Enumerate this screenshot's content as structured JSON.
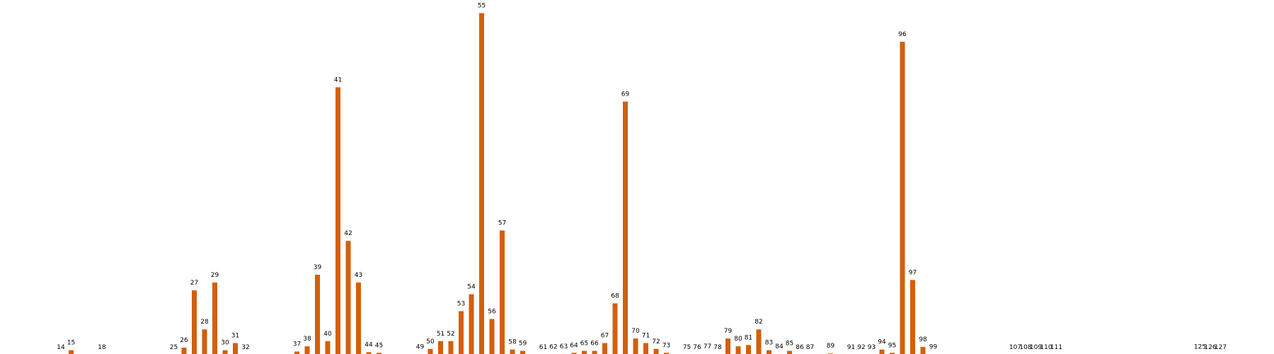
{
  "chart_data": {
    "type": "bar",
    "title": "",
    "xlabel": "",
    "ylabel": "",
    "ylim": [
      0,
      2600
    ],
    "grid": false,
    "legend": "none",
    "color": "#d35f0b",
    "categories": [
      "14",
      "15",
      "18",
      "25",
      "26",
      "27",
      "28",
      "29",
      "30",
      "31",
      "32",
      "37",
      "38",
      "39",
      "40",
      "41",
      "42",
      "43",
      "44",
      "45",
      "49",
      "50",
      "51",
      "52",
      "53",
      "54",
      "55",
      "56",
      "57",
      "58",
      "59",
      "61",
      "62",
      "63",
      "64",
      "65",
      "66",
      "67",
      "68",
      "69",
      "70",
      "71",
      "72",
      "73",
      "75",
      "76",
      "77",
      "78",
      "79",
      "80",
      "81",
      "82",
      "83",
      "84",
      "85",
      "86",
      "87",
      "89",
      "91",
      "92",
      "93",
      "94",
      "95",
      "96",
      "97",
      "98",
      "99",
      "107",
      "108",
      "109",
      "110",
      "111",
      "125",
      "126",
      "127"
    ],
    "positions": [
      14,
      15,
      18,
      25,
      26,
      27,
      28,
      29,
      30,
      31,
      32,
      37,
      38,
      39,
      40,
      41,
      42,
      43,
      44,
      45,
      49,
      50,
      51,
      52,
      53,
      54,
      55,
      56,
      57,
      58,
      59,
      61,
      62,
      63,
      64,
      65,
      66,
      67,
      68,
      69,
      70,
      71,
      72,
      73,
      75,
      76,
      77,
      78,
      79,
      80,
      81,
      82,
      83,
      84,
      85,
      86,
      87,
      89,
      91,
      92,
      93,
      94,
      95,
      96,
      97,
      98,
      99,
      107,
      108,
      109,
      110,
      111,
      125,
      126,
      127
    ],
    "values": [
      5,
      40,
      2,
      2,
      60,
      500,
      200,
      560,
      40,
      95,
      5,
      30,
      70,
      620,
      110,
      2060,
      880,
      560,
      25,
      20,
      8,
      50,
      110,
      110,
      340,
      470,
      2630,
      280,
      960,
      45,
      35,
      5,
      8,
      10,
      20,
      35,
      35,
      95,
      400,
      1950,
      130,
      95,
      50,
      20,
      3,
      5,
      10,
      5,
      130,
      70,
      80,
      200,
      40,
      10,
      35,
      2,
      2,
      15,
      5,
      6,
      6,
      45,
      20,
      2410,
      580,
      65,
      8,
      3,
      4,
      3,
      3,
      2,
      8,
      2,
      2
    ]
  }
}
